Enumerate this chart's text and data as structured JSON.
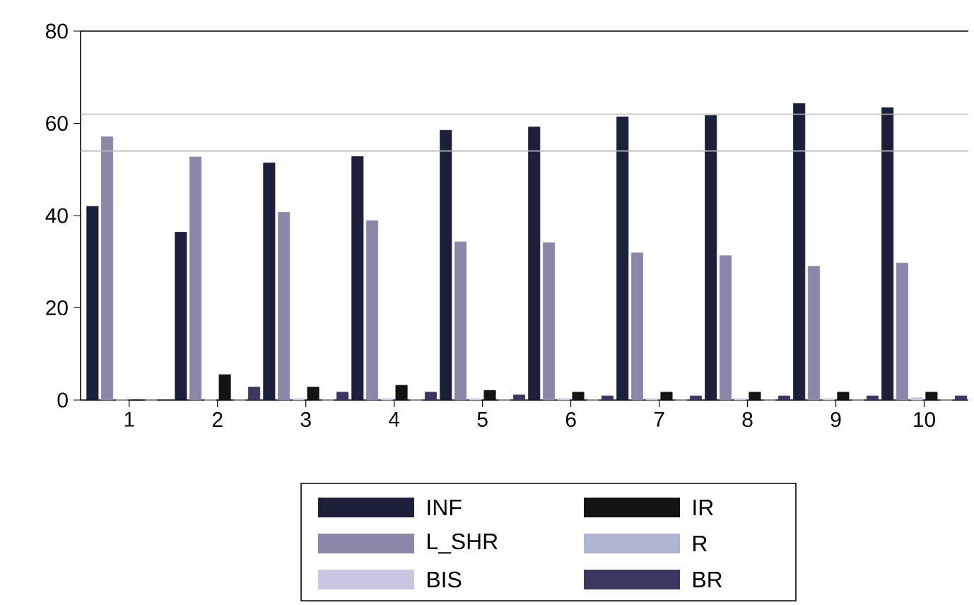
{
  "chart_data": {
    "type": "bar",
    "categories": [
      "1",
      "2",
      "3",
      "4",
      "5",
      "6",
      "7",
      "8",
      "9",
      "10"
    ],
    "series": [
      {
        "name": "INF",
        "color": "#1c1f3a",
        "values": [
          42,
          36.4,
          51.4,
          52.8,
          58.5,
          59.2,
          61.4,
          61.7,
          64.3,
          63.4
        ]
      },
      {
        "name": "L_SHR",
        "color": "#8a87a8",
        "values": [
          57.1,
          52.7,
          40.7,
          38.9,
          34.3,
          34.1,
          31.9,
          31.3,
          29.0,
          29.7
        ]
      },
      {
        "name": "BIS",
        "color": "#c8c6e0",
        "values": [
          0,
          0,
          0.3,
          0.3,
          0.3,
          0.3,
          0.3,
          0.3,
          0.3,
          0.5
        ]
      },
      {
        "name": "IR",
        "color": "#141414",
        "values": [
          0,
          5.5,
          2.8,
          3.2,
          2.1,
          1.7,
          1.7,
          1.7,
          1.7,
          1.7
        ]
      },
      {
        "name": "R",
        "color": "#b0b4d0",
        "values": [
          0,
          0,
          0,
          0,
          0,
          0,
          0,
          0,
          0,
          0
        ]
      },
      {
        "name": "BR",
        "color": "#3a3860",
        "values": [
          0,
          2.8,
          1.7,
          1.7,
          1.1,
          0.9,
          0.9,
          0.9,
          0.9,
          0.9
        ]
      }
    ],
    "ylim": [
      0,
      80
    ],
    "yticks": [
      0,
      20,
      40,
      60,
      80
    ],
    "ref_lines": [
      {
        "axis": "y",
        "value": 62,
        "color": "#b8b8b8"
      },
      {
        "axis": "y",
        "value": 54,
        "color": "#b8b8b8"
      }
    ],
    "grid": false,
    "legend": "bottom"
  }
}
